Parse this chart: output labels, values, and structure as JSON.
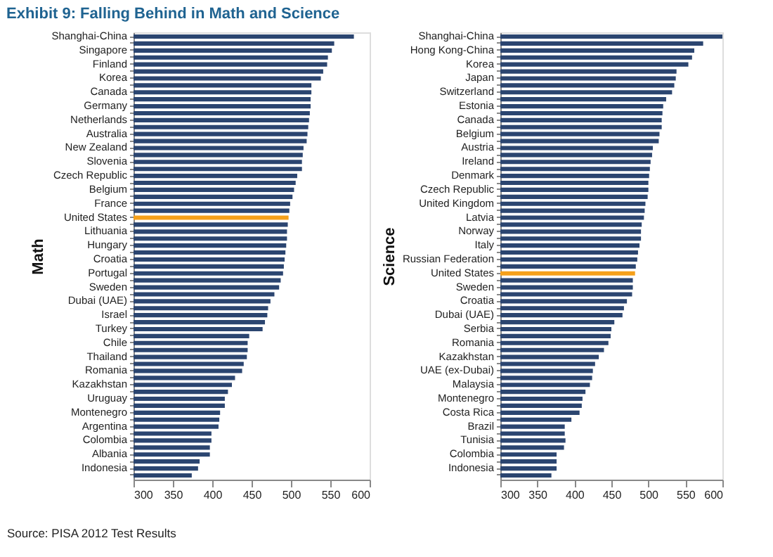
{
  "chart_data": [
    {
      "type": "bar",
      "orientation": "horizontal",
      "title": "Exhibit 9: Falling Behind in Math and Science",
      "ylabel": "Math",
      "annotations": [
        "Source:  PISA 2012 Test Results"
      ],
      "categories": [
        "Shanghai-China",
        null,
        "Singapore",
        null,
        "Finland",
        null,
        "Korea",
        null,
        "Canada",
        null,
        "Germany",
        null,
        "Netherlands",
        null,
        "Australia",
        null,
        "New Zealand",
        null,
        "Slovenia",
        null,
        "Czech Republic",
        null,
        "Belgium",
        null,
        "France",
        null,
        "United States",
        null,
        "Lithuania",
        null,
        "Hungary",
        null,
        "Croatia",
        null,
        "Portugal",
        null,
        "Sweden",
        null,
        "Dubai (UAE)",
        null,
        "Israel",
        null,
        "Turkey",
        null,
        "Chile",
        null,
        "Thailand",
        null,
        "Romania",
        null,
        "Kazakhstan",
        null,
        "Uruguay",
        null,
        "Montenegro",
        null,
        "Argentina",
        null,
        "Colombia",
        null,
        "Albania",
        null,
        "Indonesia",
        null
      ],
      "values": [
        580,
        555,
        552,
        547,
        546,
        541,
        538,
        526,
        526,
        525,
        525,
        524,
        523,
        522,
        521,
        520,
        516,
        515,
        514,
        514,
        508,
        506,
        504,
        502,
        499,
        498,
        497,
        496,
        495,
        495,
        494,
        493,
        492,
        491,
        490,
        487,
        485,
        479,
        474,
        471,
        470,
        467,
        464,
        447,
        445,
        445,
        444,
        440,
        438,
        429,
        425,
        420,
        416,
        416,
        410,
        409,
        408,
        399,
        399,
        397,
        397,
        384,
        382,
        374
      ],
      "colors": [
        "#2b4570",
        "#2b4570",
        "#2b4570",
        "#2b4570",
        "#2b4570",
        "#2b4570",
        "#2b4570",
        "#2b4570",
        "#2b4570",
        "#2b4570",
        "#2b4570",
        "#2b4570",
        "#2b4570",
        "#2b4570",
        "#2b4570",
        "#2b4570",
        "#2b4570",
        "#2b4570",
        "#2b4570",
        "#2b4570",
        "#2b4570",
        "#2b4570",
        "#2b4570",
        "#2b4570",
        "#2b4570",
        "#2b4570",
        "#f5a01a",
        "#2b4570",
        "#2b4570",
        "#2b4570",
        "#2b4570",
        "#2b4570",
        "#2b4570",
        "#2b4570",
        "#2b4570",
        "#2b4570",
        "#2b4570",
        "#2b4570",
        "#2b4570",
        "#2b4570",
        "#2b4570",
        "#2b4570",
        "#2b4570",
        "#2b4570",
        "#2b4570",
        "#2b4570",
        "#2b4570",
        "#2b4570",
        "#2b4570",
        "#2b4570",
        "#2b4570",
        "#2b4570",
        "#2b4570",
        "#2b4570",
        "#2b4570",
        "#2b4570",
        "#2b4570",
        "#2b4570",
        "#2b4570",
        "#2b4570",
        "#2b4570",
        "#2b4570",
        "#2b4570",
        "#2b4570"
      ],
      "xlim": [
        300,
        600
      ],
      "xticks": [
        300,
        350,
        400,
        450,
        500,
        550,
        600
      ],
      "grid": false
    },
    {
      "type": "bar",
      "orientation": "horizontal",
      "ylabel": "Science",
      "categories": [
        "Shanghai-China",
        null,
        "Hong Kong-China",
        null,
        "Korea",
        null,
        "Japan",
        null,
        "Switzerland",
        null,
        "Estonia",
        null,
        "Canada",
        null,
        "Belgium",
        null,
        "Austria",
        null,
        "Ireland",
        null,
        "Denmark",
        null,
        "Czech Republic",
        null,
        "United Kingdom",
        null,
        "Latvia",
        null,
        "Norway",
        null,
        "Italy",
        null,
        "Russian Federation",
        null,
        "United States",
        null,
        "Sweden",
        null,
        "Croatia",
        null,
        "Dubai (UAE)",
        null,
        "Serbia",
        null,
        "Romania",
        null,
        "Kazakhstan",
        null,
        "UAE (ex-Dubai)",
        null,
        "Malaysia",
        null,
        "Montenegro",
        null,
        "Costa Rica",
        null,
        "Brazil",
        null,
        "Tunisia",
        null,
        "Colombia",
        null,
        "Indonesia",
        null
      ],
      "values": [
        600,
        574,
        562,
        559,
        554,
        538,
        537,
        535,
        532,
        524,
        520,
        519,
        518,
        518,
        515,
        514,
        506,
        505,
        503,
        502,
        501,
        500,
        500,
        499,
        496,
        495,
        494,
        491,
        490,
        490,
        488,
        486,
        485,
        483,
        482,
        479,
        479,
        478,
        471,
        467,
        465,
        454,
        450,
        449,
        446,
        440,
        433,
        428,
        425,
        424,
        421,
        415,
        411,
        410,
        407,
        396,
        387,
        387,
        388,
        386,
        376,
        376,
        376,
        369
      ],
      "colors": [
        "#2b4570",
        "#2b4570",
        "#2b4570",
        "#2b4570",
        "#2b4570",
        "#2b4570",
        "#2b4570",
        "#2b4570",
        "#2b4570",
        "#2b4570",
        "#2b4570",
        "#2b4570",
        "#2b4570",
        "#2b4570",
        "#2b4570",
        "#2b4570",
        "#2b4570",
        "#2b4570",
        "#2b4570",
        "#2b4570",
        "#2b4570",
        "#2b4570",
        "#2b4570",
        "#2b4570",
        "#2b4570",
        "#2b4570",
        "#2b4570",
        "#2b4570",
        "#2b4570",
        "#2b4570",
        "#2b4570",
        "#2b4570",
        "#2b4570",
        "#2b4570",
        "#f5a01a",
        "#2b4570",
        "#2b4570",
        "#2b4570",
        "#2b4570",
        "#2b4570",
        "#2b4570",
        "#2b4570",
        "#2b4570",
        "#2b4570",
        "#2b4570",
        "#2b4570",
        "#2b4570",
        "#2b4570",
        "#2b4570",
        "#2b4570",
        "#2b4570",
        "#2b4570",
        "#2b4570",
        "#2b4570",
        "#2b4570",
        "#2b4570",
        "#2b4570",
        "#2b4570",
        "#2b4570",
        "#2b4570",
        "#2b4570",
        "#2b4570",
        "#2b4570",
        "#2b4570"
      ],
      "xlim": [
        300,
        600
      ],
      "xticks": [
        300,
        350,
        400,
        450,
        500,
        550,
        600
      ],
      "grid": false
    }
  ]
}
